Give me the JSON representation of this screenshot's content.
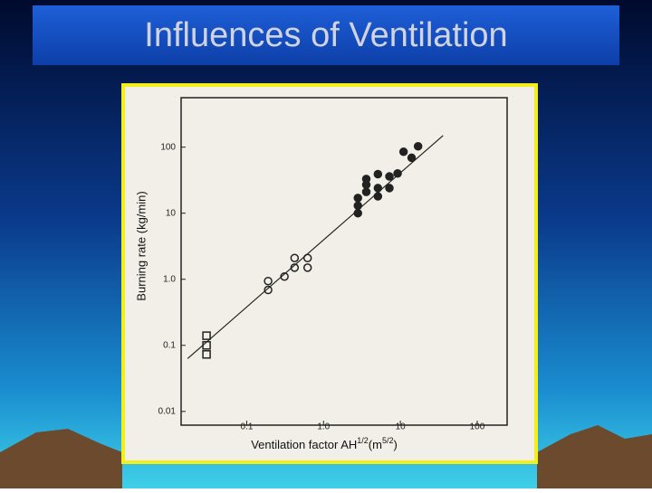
{
  "chart_data": {
    "type": "scatter",
    "title": "Influences of Ventilation",
    "y_label": "Burning rate (kg/min)",
    "x_label": [
      "Ventilation factor AH",
      "1/2",
      "(m",
      "5/2",
      ")"
    ],
    "log_x": true,
    "log_y": true,
    "xlim": [
      0.014,
      245
    ],
    "ylim": [
      0.0062,
      560
    ],
    "xticks": [
      0.1,
      {
        "value": 1,
        "label": "1.0"
      },
      10,
      100
    ],
    "yticks": [
      0.01,
      0.1,
      {
        "value": 1,
        "label": "1.0"
      },
      10,
      100
    ],
    "color": "#222222",
    "series": [
      {
        "marker": "square",
        "x": [
          0.03,
          0.03,
          0.03
        ],
        "values": [
          0.14,
          0.1,
          0.073
        ]
      },
      {
        "marker": "open-circle",
        "x": [
          0.19,
          0.19,
          0.31,
          0.42,
          0.42,
          0.62,
          0.62
        ],
        "values": [
          0.94,
          0.69,
          1.1,
          1.5,
          2.1,
          1.5,
          2.1
        ]
      },
      {
        "marker": "filled-circle",
        "x": [
          2.8,
          2.8,
          2.8,
          3.6,
          3.6,
          3.6,
          5.1,
          5.1,
          5.1,
          7.2,
          7.2,
          9.2,
          11,
          14,
          17
        ],
        "values": [
          10,
          13,
          17,
          21,
          27,
          33,
          24,
          18,
          39,
          24,
          36,
          40,
          85,
          69,
          103
        ]
      },
      {
        "marker": "line",
        "x": [
          0.017,
          36
        ],
        "values": [
          0.063,
          150
        ]
      }
    ]
  }
}
